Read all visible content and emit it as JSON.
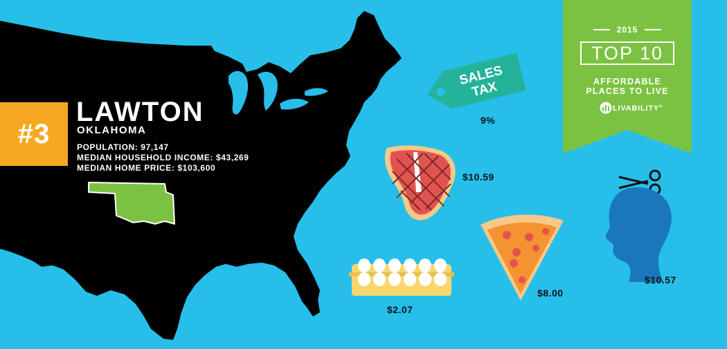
{
  "rank": {
    "number": "#3"
  },
  "city": {
    "name": "LAWTON",
    "state": "OKLAHOMA",
    "population": "POPULATION: 97,147",
    "median_income": "MEDIAN HOUSEHOLD INCOME: $43,269",
    "median_home_price": "MEDIAN HOME PRICE: $103,600"
  },
  "award": {
    "year": "2015",
    "headline": "TOP 10",
    "line1": "AFFORDABLE",
    "line2": "PLACES TO LIVE",
    "brand": "LIVABILITY",
    "brand_mark": "®"
  },
  "costs": {
    "sales_tax_label_line1": "SALES",
    "sales_tax_label_line2": "TAX",
    "sales_tax": "9%",
    "steak": "$10.59",
    "haircut": "$10.57",
    "pizza": "$8.00",
    "eggs": "$2.07"
  },
  "colors": {
    "background": "#27bfea",
    "map": "#000000",
    "badge": "#f7a823",
    "state_highlight": "#7cc242",
    "banner": "#7cc242",
    "tag": "#24b39a",
    "haircut_silhouette": "#1a77bb"
  },
  "icons": [
    "us-map-icon",
    "oklahoma-state-icon",
    "price-tag-icon",
    "steak-icon",
    "egg-carton-icon",
    "pizza-slice-icon",
    "scissors-icon",
    "head-silhouette-icon",
    "livability-logo-icon"
  ]
}
